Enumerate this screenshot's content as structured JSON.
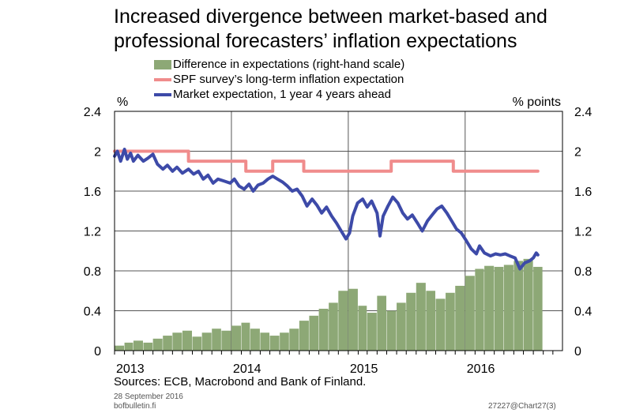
{
  "title": "Increased divergence between market-based and professional forecasters’ inflation expectations",
  "legend": [
    {
      "label": "Difference in expectations (right-hand scale)",
      "color": "#8da876",
      "kind": "bar"
    },
    {
      "label": "SPF survey’s long-term inflation expectation",
      "color": "#f08c8c",
      "kind": "line"
    },
    {
      "label": "Market expectation, 1 year 4 years ahead",
      "color": "#3d4aa8",
      "kind": "line"
    }
  ],
  "chart_data": {
    "type": "line",
    "left_axis_unit": "%",
    "right_axis_unit": "% points",
    "ylim": [
      0,
      2.4
    ],
    "yticks": [
      "0",
      "0.4",
      "0.8",
      "1.2",
      "1.6",
      "2",
      "2.4"
    ],
    "xlim": [
      "2013-01-01",
      "2016-10-31"
    ],
    "xticks": [
      "2013",
      "2014",
      "2015",
      "2016"
    ],
    "grid": true,
    "series": [
      {
        "name": "SPF survey’s long-term inflation expectation",
        "kind": "step-line",
        "color": "#f08c8c",
        "points": [
          [
            "2013-01-01",
            2.0
          ],
          [
            "2013-08-20",
            2.0
          ],
          [
            "2013-08-20",
            1.9
          ],
          [
            "2014-02-15",
            1.9
          ],
          [
            "2014-02-15",
            1.8
          ],
          [
            "2014-05-10",
            1.8
          ],
          [
            "2014-05-10",
            1.9
          ],
          [
            "2014-08-15",
            1.9
          ],
          [
            "2014-08-15",
            1.8
          ],
          [
            "2015-05-15",
            1.8
          ],
          [
            "2015-05-15",
            1.9
          ],
          [
            "2015-11-25",
            1.9
          ],
          [
            "2015-11-25",
            1.8
          ],
          [
            "2016-08-15",
            1.8
          ]
        ]
      },
      {
        "name": "Market expectation, 1 year 4 years ahead",
        "kind": "line",
        "color": "#3d4aa8",
        "points": [
          [
            "2013-01-01",
            1.95
          ],
          [
            "2013-01-10",
            2.0
          ],
          [
            "2013-01-20",
            1.9
          ],
          [
            "2013-02-01",
            2.02
          ],
          [
            "2013-02-10",
            1.92
          ],
          [
            "2013-02-20",
            1.98
          ],
          [
            "2013-03-01",
            1.9
          ],
          [
            "2013-03-15",
            1.96
          ],
          [
            "2013-04-01",
            1.9
          ],
          [
            "2013-04-15",
            1.93
          ],
          [
            "2013-05-01",
            1.97
          ],
          [
            "2013-05-15",
            1.87
          ],
          [
            "2013-06-01",
            1.82
          ],
          [
            "2013-06-15",
            1.86
          ],
          [
            "2013-07-01",
            1.8
          ],
          [
            "2013-07-15",
            1.84
          ],
          [
            "2013-08-01",
            1.78
          ],
          [
            "2013-08-20",
            1.82
          ],
          [
            "2013-09-05",
            1.77
          ],
          [
            "2013-09-20",
            1.8
          ],
          [
            "2013-10-05",
            1.72
          ],
          [
            "2013-10-20",
            1.76
          ],
          [
            "2013-11-05",
            1.68
          ],
          [
            "2013-11-20",
            1.72
          ],
          [
            "2013-12-10",
            1.7
          ],
          [
            "2013-12-28",
            1.68
          ],
          [
            "2014-01-10",
            1.72
          ],
          [
            "2014-01-25",
            1.65
          ],
          [
            "2014-02-10",
            1.62
          ],
          [
            "2014-02-25",
            1.67
          ],
          [
            "2014-03-10",
            1.6
          ],
          [
            "2014-03-25",
            1.66
          ],
          [
            "2014-04-10",
            1.68
          ],
          [
            "2014-04-25",
            1.72
          ],
          [
            "2014-05-10",
            1.75
          ],
          [
            "2014-05-25",
            1.72
          ],
          [
            "2014-06-10",
            1.69
          ],
          [
            "2014-06-25",
            1.65
          ],
          [
            "2014-07-10",
            1.6
          ],
          [
            "2014-07-25",
            1.62
          ],
          [
            "2014-08-10",
            1.55
          ],
          [
            "2014-08-25",
            1.45
          ],
          [
            "2014-09-10",
            1.52
          ],
          [
            "2014-09-25",
            1.46
          ],
          [
            "2014-10-10",
            1.38
          ],
          [
            "2014-10-25",
            1.44
          ],
          [
            "2014-11-10",
            1.35
          ],
          [
            "2014-11-25",
            1.28
          ],
          [
            "2014-12-10",
            1.2
          ],
          [
            "2014-12-25",
            1.12
          ],
          [
            "2015-01-05",
            1.18
          ],
          [
            "2015-01-15",
            1.35
          ],
          [
            "2015-01-30",
            1.48
          ],
          [
            "2015-02-15",
            1.52
          ],
          [
            "2015-03-01",
            1.44
          ],
          [
            "2015-03-15",
            1.5
          ],
          [
            "2015-04-01",
            1.38
          ],
          [
            "2015-04-10",
            1.15
          ],
          [
            "2015-04-20",
            1.35
          ],
          [
            "2015-05-05",
            1.45
          ],
          [
            "2015-05-20",
            1.54
          ],
          [
            "2015-06-05",
            1.48
          ],
          [
            "2015-06-20",
            1.38
          ],
          [
            "2015-07-05",
            1.32
          ],
          [
            "2015-07-20",
            1.36
          ],
          [
            "2015-08-05",
            1.28
          ],
          [
            "2015-08-20",
            1.2
          ],
          [
            "2015-09-05",
            1.3
          ],
          [
            "2015-09-20",
            1.36
          ],
          [
            "2015-10-05",
            1.42
          ],
          [
            "2015-10-20",
            1.45
          ],
          [
            "2015-11-05",
            1.38
          ],
          [
            "2015-11-20",
            1.3
          ],
          [
            "2015-12-05",
            1.22
          ],
          [
            "2015-12-20",
            1.18
          ],
          [
            "2016-01-05",
            1.1
          ],
          [
            "2016-01-20",
            1.02
          ],
          [
            "2016-02-05",
            0.97
          ],
          [
            "2016-02-15",
            1.05
          ],
          [
            "2016-03-01",
            0.98
          ],
          [
            "2016-03-20",
            0.95
          ],
          [
            "2016-04-05",
            0.97
          ],
          [
            "2016-04-20",
            0.96
          ],
          [
            "2016-05-05",
            0.97
          ],
          [
            "2016-05-20",
            0.95
          ],
          [
            "2016-06-05",
            0.93
          ],
          [
            "2016-06-20",
            0.82
          ],
          [
            "2016-07-05",
            0.88
          ],
          [
            "2016-07-20",
            0.9
          ],
          [
            "2016-08-01",
            0.93
          ],
          [
            "2016-08-10",
            0.98
          ],
          [
            "2016-08-15",
            0.96
          ]
        ]
      },
      {
        "name": "Difference in expectations (right-hand scale)",
        "kind": "bar",
        "color": "#8da876",
        "axis": "right",
        "points": [
          [
            "2013-01-01",
            0.05
          ],
          [
            "2013-02-01",
            0.08
          ],
          [
            "2013-03-01",
            0.1
          ],
          [
            "2013-04-01",
            0.08
          ],
          [
            "2013-05-01",
            0.12
          ],
          [
            "2013-06-01",
            0.15
          ],
          [
            "2013-07-01",
            0.18
          ],
          [
            "2013-08-01",
            0.2
          ],
          [
            "2013-09-01",
            0.14
          ],
          [
            "2013-10-01",
            0.18
          ],
          [
            "2013-11-01",
            0.22
          ],
          [
            "2013-12-01",
            0.2
          ],
          [
            "2014-01-01",
            0.25
          ],
          [
            "2014-02-01",
            0.28
          ],
          [
            "2014-03-01",
            0.22
          ],
          [
            "2014-04-01",
            0.18
          ],
          [
            "2014-05-01",
            0.15
          ],
          [
            "2014-06-01",
            0.18
          ],
          [
            "2014-07-01",
            0.22
          ],
          [
            "2014-08-01",
            0.3
          ],
          [
            "2014-09-01",
            0.35
          ],
          [
            "2014-10-01",
            0.42
          ],
          [
            "2014-11-01",
            0.48
          ],
          [
            "2014-12-01",
            0.6
          ],
          [
            "2015-01-01",
            0.62
          ],
          [
            "2015-02-01",
            0.45
          ],
          [
            "2015-03-01",
            0.38
          ],
          [
            "2015-04-01",
            0.55
          ],
          [
            "2015-05-01",
            0.4
          ],
          [
            "2015-06-01",
            0.48
          ],
          [
            "2015-07-01",
            0.58
          ],
          [
            "2015-08-01",
            0.68
          ],
          [
            "2015-09-01",
            0.6
          ],
          [
            "2015-10-01",
            0.52
          ],
          [
            "2015-11-01",
            0.58
          ],
          [
            "2015-12-01",
            0.65
          ],
          [
            "2016-01-01",
            0.75
          ],
          [
            "2016-02-01",
            0.82
          ],
          [
            "2016-03-01",
            0.85
          ],
          [
            "2016-04-01",
            0.84
          ],
          [
            "2016-05-01",
            0.86
          ],
          [
            "2016-06-01",
            0.9
          ],
          [
            "2016-07-01",
            0.92
          ],
          [
            "2016-08-01",
            0.84
          ]
        ]
      }
    ]
  },
  "sources": "Sources: ECB, Macrobond and Bank of Finland.",
  "date": "28 September 2016",
  "site": "bofbulletin.fi",
  "chart_id": "27227@Chart27(3)"
}
